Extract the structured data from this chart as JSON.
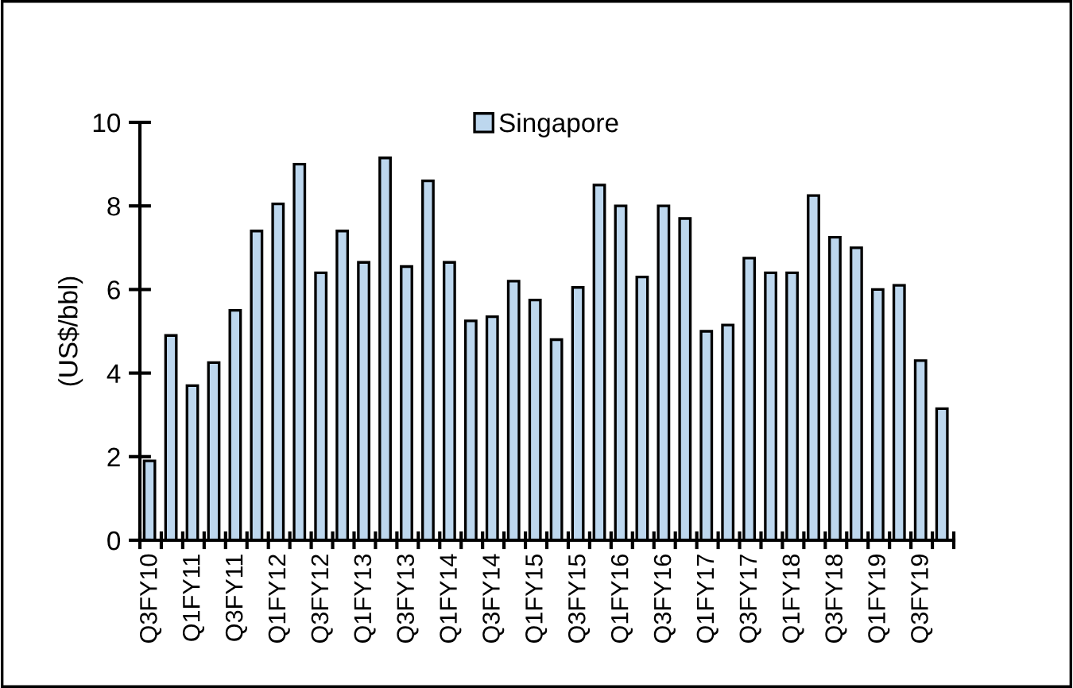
{
  "chart_data": {
    "type": "bar",
    "ylabel": "(US$/bbl)",
    "categories": [
      "Q3FY10",
      null,
      "Q1FY11",
      null,
      "Q3FY11",
      null,
      "Q1FY12",
      null,
      "Q3FY12",
      null,
      "Q1FY13",
      null,
      "Q3FY13",
      null,
      "Q1FY14",
      null,
      "Q3FY14",
      null,
      "Q1FY15",
      null,
      "Q3FY15",
      null,
      "Q1FY16",
      null,
      "Q3FY16",
      null,
      "Q1FY17",
      null,
      "Q3FY17",
      null,
      "Q1FY18",
      null,
      "Q3FY18",
      null,
      "Q1FY19",
      null,
      "Q3FY19",
      null
    ],
    "series": [
      {
        "name": "Singapore",
        "color": "#bdd7ee",
        "values": [
          1.9,
          4.9,
          3.7,
          4.25,
          5.5,
          7.4,
          8.05,
          9.0,
          6.4,
          7.4,
          6.65,
          9.15,
          6.55,
          8.6,
          6.65,
          5.25,
          5.35,
          6.2,
          5.75,
          4.8,
          6.05,
          8.5,
          8.0,
          6.3,
          8.0,
          7.7,
          5.0,
          5.15,
          6.75,
          6.4,
          6.4,
          8.25,
          7.25,
          7.0,
          6.0,
          6.1,
          4.3,
          3.15
        ]
      }
    ],
    "ylim": [
      0,
      10
    ],
    "yticks": [
      0,
      2,
      4,
      6,
      8,
      10
    ],
    "grid": false,
    "legend": "top"
  }
}
